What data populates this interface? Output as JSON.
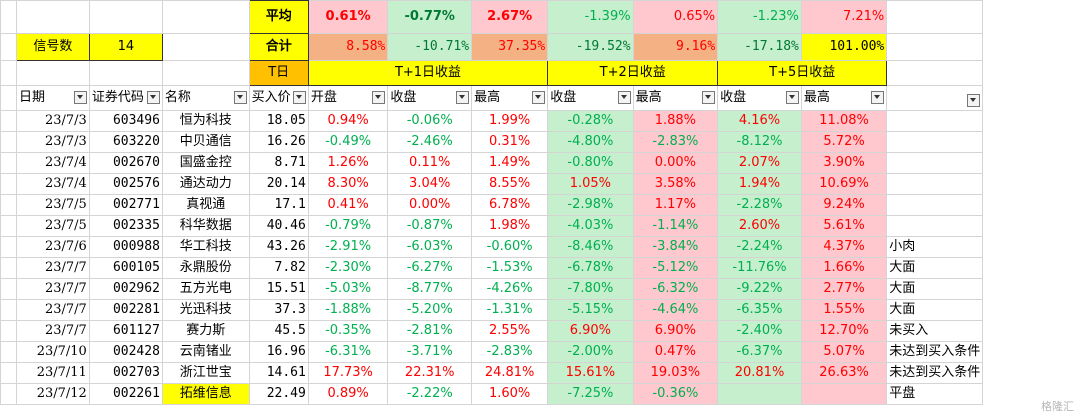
{
  "summary": {
    "avg_label": "平均",
    "total_label": "合计",
    "signal_label": "信号数",
    "signal_count": "14",
    "t_day_label": "T日",
    "avg": [
      "0.61%",
      "-0.77%",
      "2.67%",
      "-1.39%",
      "0.65%",
      "-1.23%",
      "7.21%"
    ],
    "total": [
      "8.58%",
      "-10.71%",
      "37.35%",
      "-19.52%",
      "9.16%",
      "-17.18%",
      "101.00%"
    ],
    "groups": [
      "T+1日收益",
      "T+2日收益",
      "T+5日收益"
    ]
  },
  "headers": [
    "日期",
    "证券代码",
    "名称",
    "买入价",
    "开盘",
    "收盘",
    "最高",
    "收盘",
    "最高",
    "收盘",
    "最高"
  ],
  "rows": [
    {
      "date": "23/7/3",
      "code": "603496",
      "name": "恒为科技",
      "price": "18.05",
      "vals": [
        "0.94%",
        "-0.06%",
        "1.99%",
        "-0.28%",
        "1.88%",
        "4.16%",
        "11.08%"
      ],
      "note": ""
    },
    {
      "date": "23/7/3",
      "code": "603220",
      "name": "中贝通信",
      "price": "16.26",
      "vals": [
        "-0.49%",
        "-2.46%",
        "0.31%",
        "-4.80%",
        "-2.83%",
        "-8.12%",
        "5.72%"
      ],
      "note": ""
    },
    {
      "date": "23/7/4",
      "code": "002670",
      "name": "国盛金控",
      "price": "8.71",
      "vals": [
        "1.26%",
        "0.11%",
        "1.49%",
        "-0.80%",
        "0.00%",
        "2.07%",
        "3.90%"
      ],
      "note": ""
    },
    {
      "date": "23/7/4",
      "code": "002576",
      "name": "通达动力",
      "price": "20.14",
      "vals": [
        "8.30%",
        "3.04%",
        "8.55%",
        "1.05%",
        "3.58%",
        "1.94%",
        "10.69%"
      ],
      "note": ""
    },
    {
      "date": "23/7/5",
      "code": "002771",
      "name": "真视通",
      "price": "17.1",
      "vals": [
        "0.41%",
        "0.00%",
        "6.78%",
        "-2.98%",
        "1.17%",
        "-2.28%",
        "9.24%"
      ],
      "note": ""
    },
    {
      "date": "23/7/5",
      "code": "002335",
      "name": "科华数据",
      "price": "40.46",
      "vals": [
        "-0.79%",
        "-0.87%",
        "1.98%",
        "-4.03%",
        "-1.14%",
        "2.60%",
        "5.61%"
      ],
      "note": ""
    },
    {
      "date": "23/7/6",
      "code": "000988",
      "name": "华工科技",
      "price": "43.26",
      "vals": [
        "-2.91%",
        "-6.03%",
        "-0.60%",
        "-8.46%",
        "-3.84%",
        "-2.24%",
        "4.37%"
      ],
      "note": "小肉"
    },
    {
      "date": "23/7/7",
      "code": "600105",
      "name": "永鼎股份",
      "price": "7.82",
      "vals": [
        "-2.30%",
        "-6.27%",
        "-1.53%",
        "-6.78%",
        "-5.12%",
        "-11.76%",
        "1.66%"
      ],
      "note": "大面"
    },
    {
      "date": "23/7/7",
      "code": "002962",
      "name": "五方光电",
      "price": "15.51",
      "vals": [
        "-5.03%",
        "-8.77%",
        "-4.26%",
        "-7.80%",
        "-6.32%",
        "-9.22%",
        "2.77%"
      ],
      "note": "大面"
    },
    {
      "date": "23/7/7",
      "code": "002281",
      "name": "光迅科技",
      "price": "37.3",
      "vals": [
        "-1.88%",
        "-5.20%",
        "-1.31%",
        "-5.15%",
        "-4.64%",
        "-6.35%",
        "1.55%"
      ],
      "note": "大面"
    },
    {
      "date": "23/7/7",
      "code": "601127",
      "name": "赛力斯",
      "price": "45.5",
      "vals": [
        "-0.35%",
        "-2.81%",
        "2.55%",
        "6.90%",
        "6.90%",
        "-2.40%",
        "12.70%"
      ],
      "note": "未买入"
    },
    {
      "date": "23/7/10",
      "code": "002428",
      "name": "云南锗业",
      "price": "16.96",
      "vals": [
        "-6.31%",
        "-3.71%",
        "-2.83%",
        "-2.00%",
        "0.47%",
        "-6.37%",
        "5.07%"
      ],
      "note": "未达到买入条件"
    },
    {
      "date": "23/7/11",
      "code": "002703",
      "name": "浙江世宝",
      "price": "14.61",
      "vals": [
        "17.73%",
        "22.31%",
        "24.81%",
        "15.61%",
        "19.03%",
        "20.81%",
        "26.63%"
      ],
      "note": "未达到买入条件"
    },
    {
      "date": "23/7/12",
      "code": "002261",
      "name": "拓维信息",
      "price": "22.49",
      "vals": [
        "0.89%",
        "-2.22%",
        "1.60%",
        "-7.25%",
        "-0.36%",
        "",
        ""
      ],
      "note": "平盘"
    }
  ],
  "watermark": "格隆汇"
}
